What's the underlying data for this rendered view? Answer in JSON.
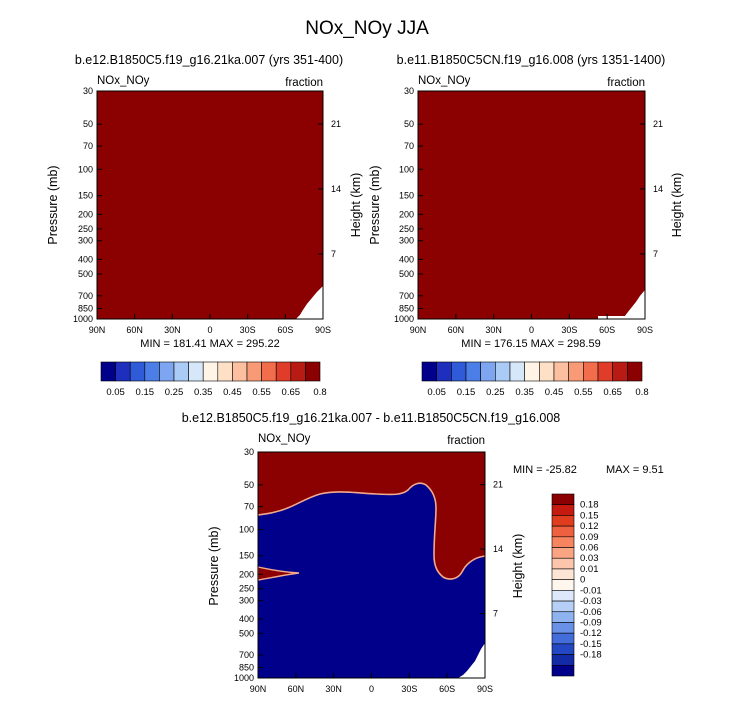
{
  "title": "NOx_NOy JJA",
  "colors": {
    "dark_red": "#8b0000",
    "navy": "#00008b",
    "frame": "#000000"
  },
  "chart_data": [
    {
      "type": "heatmap",
      "id": "top-left",
      "title": "b.e12.B1850C5.f19_g16.21ka.007 (yrs 351-400)",
      "corner_left": "NOx_NOy",
      "corner_right": "fraction",
      "xlabel": "",
      "ylabel": "Pressure (mb)",
      "ylabel_right": "Height (km)",
      "x_ticks": [
        "90N",
        "60N",
        "30N",
        "0",
        "30S",
        "60S",
        "90S"
      ],
      "y_ticks": [
        "30",
        "50",
        "70",
        "100",
        "150",
        "200",
        "250",
        "300",
        "400",
        "500",
        "700",
        "850",
        "1000"
      ],
      "y_right_ticks": [
        "21",
        "14",
        "7"
      ],
      "stats": "MIN = 181.41   MAX = 295.22",
      "fill": "all values above 0.8 (dark red); white no-data wedge near 90S, 1000-650 mb"
    },
    {
      "type": "heatmap",
      "id": "top-right",
      "title": "b.e11.B1850C5CN.f19_g16.008 (yrs 1351-1400)",
      "corner_left": "NOx_NOy",
      "corner_right": "fraction",
      "xlabel": "",
      "ylabel": "Pressure (mb)",
      "ylabel_right": "Height (km)",
      "x_ticks": [
        "90N",
        "60N",
        "30N",
        "0",
        "30S",
        "60S",
        "90S"
      ],
      "y_ticks": [
        "30",
        "50",
        "70",
        "100",
        "150",
        "200",
        "250",
        "300",
        "400",
        "500",
        "700",
        "850",
        "1000"
      ],
      "y_right_ticks": [
        "21",
        "14",
        "7"
      ],
      "stats": "MIN = 176.15   MAX = 298.59",
      "fill": "all values above 0.8 (dark red); white no-data wedge near 90S, 1000-700 mb"
    },
    {
      "type": "heatmap",
      "id": "difference",
      "title": "b.e12.B1850C5.f19_g16.21ka.007 - b.e11.B1850C5CN.f19_g16.008",
      "corner_left": "NOx_NOy",
      "corner_right": "fraction",
      "xlabel": "",
      "ylabel": "Pressure (mb)",
      "ylabel_right": "Height (km)",
      "x_ticks": [
        "90N",
        "60N",
        "30N",
        "0",
        "30S",
        "60S",
        "90S"
      ],
      "y_ticks": [
        "30",
        "50",
        "70",
        "100",
        "150",
        "200",
        "250",
        "300",
        "400",
        "500",
        "700",
        "850",
        "1000"
      ],
      "y_right_ticks": [
        "21",
        "14",
        "7"
      ],
      "stats_min": "MIN = -25.82",
      "stats_max": "MAX =   9.51",
      "fill": "values above 0.18 (dark red) above a boundary near 80 mb at 90N rising to 50 mb near 20S and descending to 150 mb near 90S; values below -0.18 (navy) beneath; small dark-red tongue at 200 mb from 90N to 70N"
    }
  ],
  "colorbar_top": {
    "labels": [
      "0.05",
      "0.15",
      "0.25",
      "0.35",
      "0.45",
      "0.55",
      "0.65",
      "0.8"
    ],
    "colors": [
      "#00008b",
      "#1e2fbd",
      "#2f5ad8",
      "#4c7ee8",
      "#7ea5f0",
      "#aacbf6",
      "#d6e7fa",
      "#fff4e6",
      "#fde0c5",
      "#fcc0a0",
      "#f89a75",
      "#f26d4c",
      "#e03c2a",
      "#b81a14",
      "#8b0000"
    ]
  },
  "colorbar_bottom": {
    "labels": [
      "0.18",
      "0.15",
      "0.12",
      "0.09",
      "0.06",
      "0.03",
      "0.01",
      "0",
      "-0.01",
      "-0.03",
      "-0.06",
      "-0.09",
      "-0.12",
      "-0.15",
      "-0.18"
    ],
    "colors": [
      "#8b0000",
      "#c41a10",
      "#e03c1e",
      "#ee6040",
      "#f5845f",
      "#f9a483",
      "#fcc6ac",
      "#fde4d4",
      "#fff7ee",
      "#dde9fb",
      "#b5cff6",
      "#8fb2f0",
      "#6a91e8",
      "#446ddc",
      "#2448c4",
      "#142ba8",
      "#00008b"
    ]
  }
}
